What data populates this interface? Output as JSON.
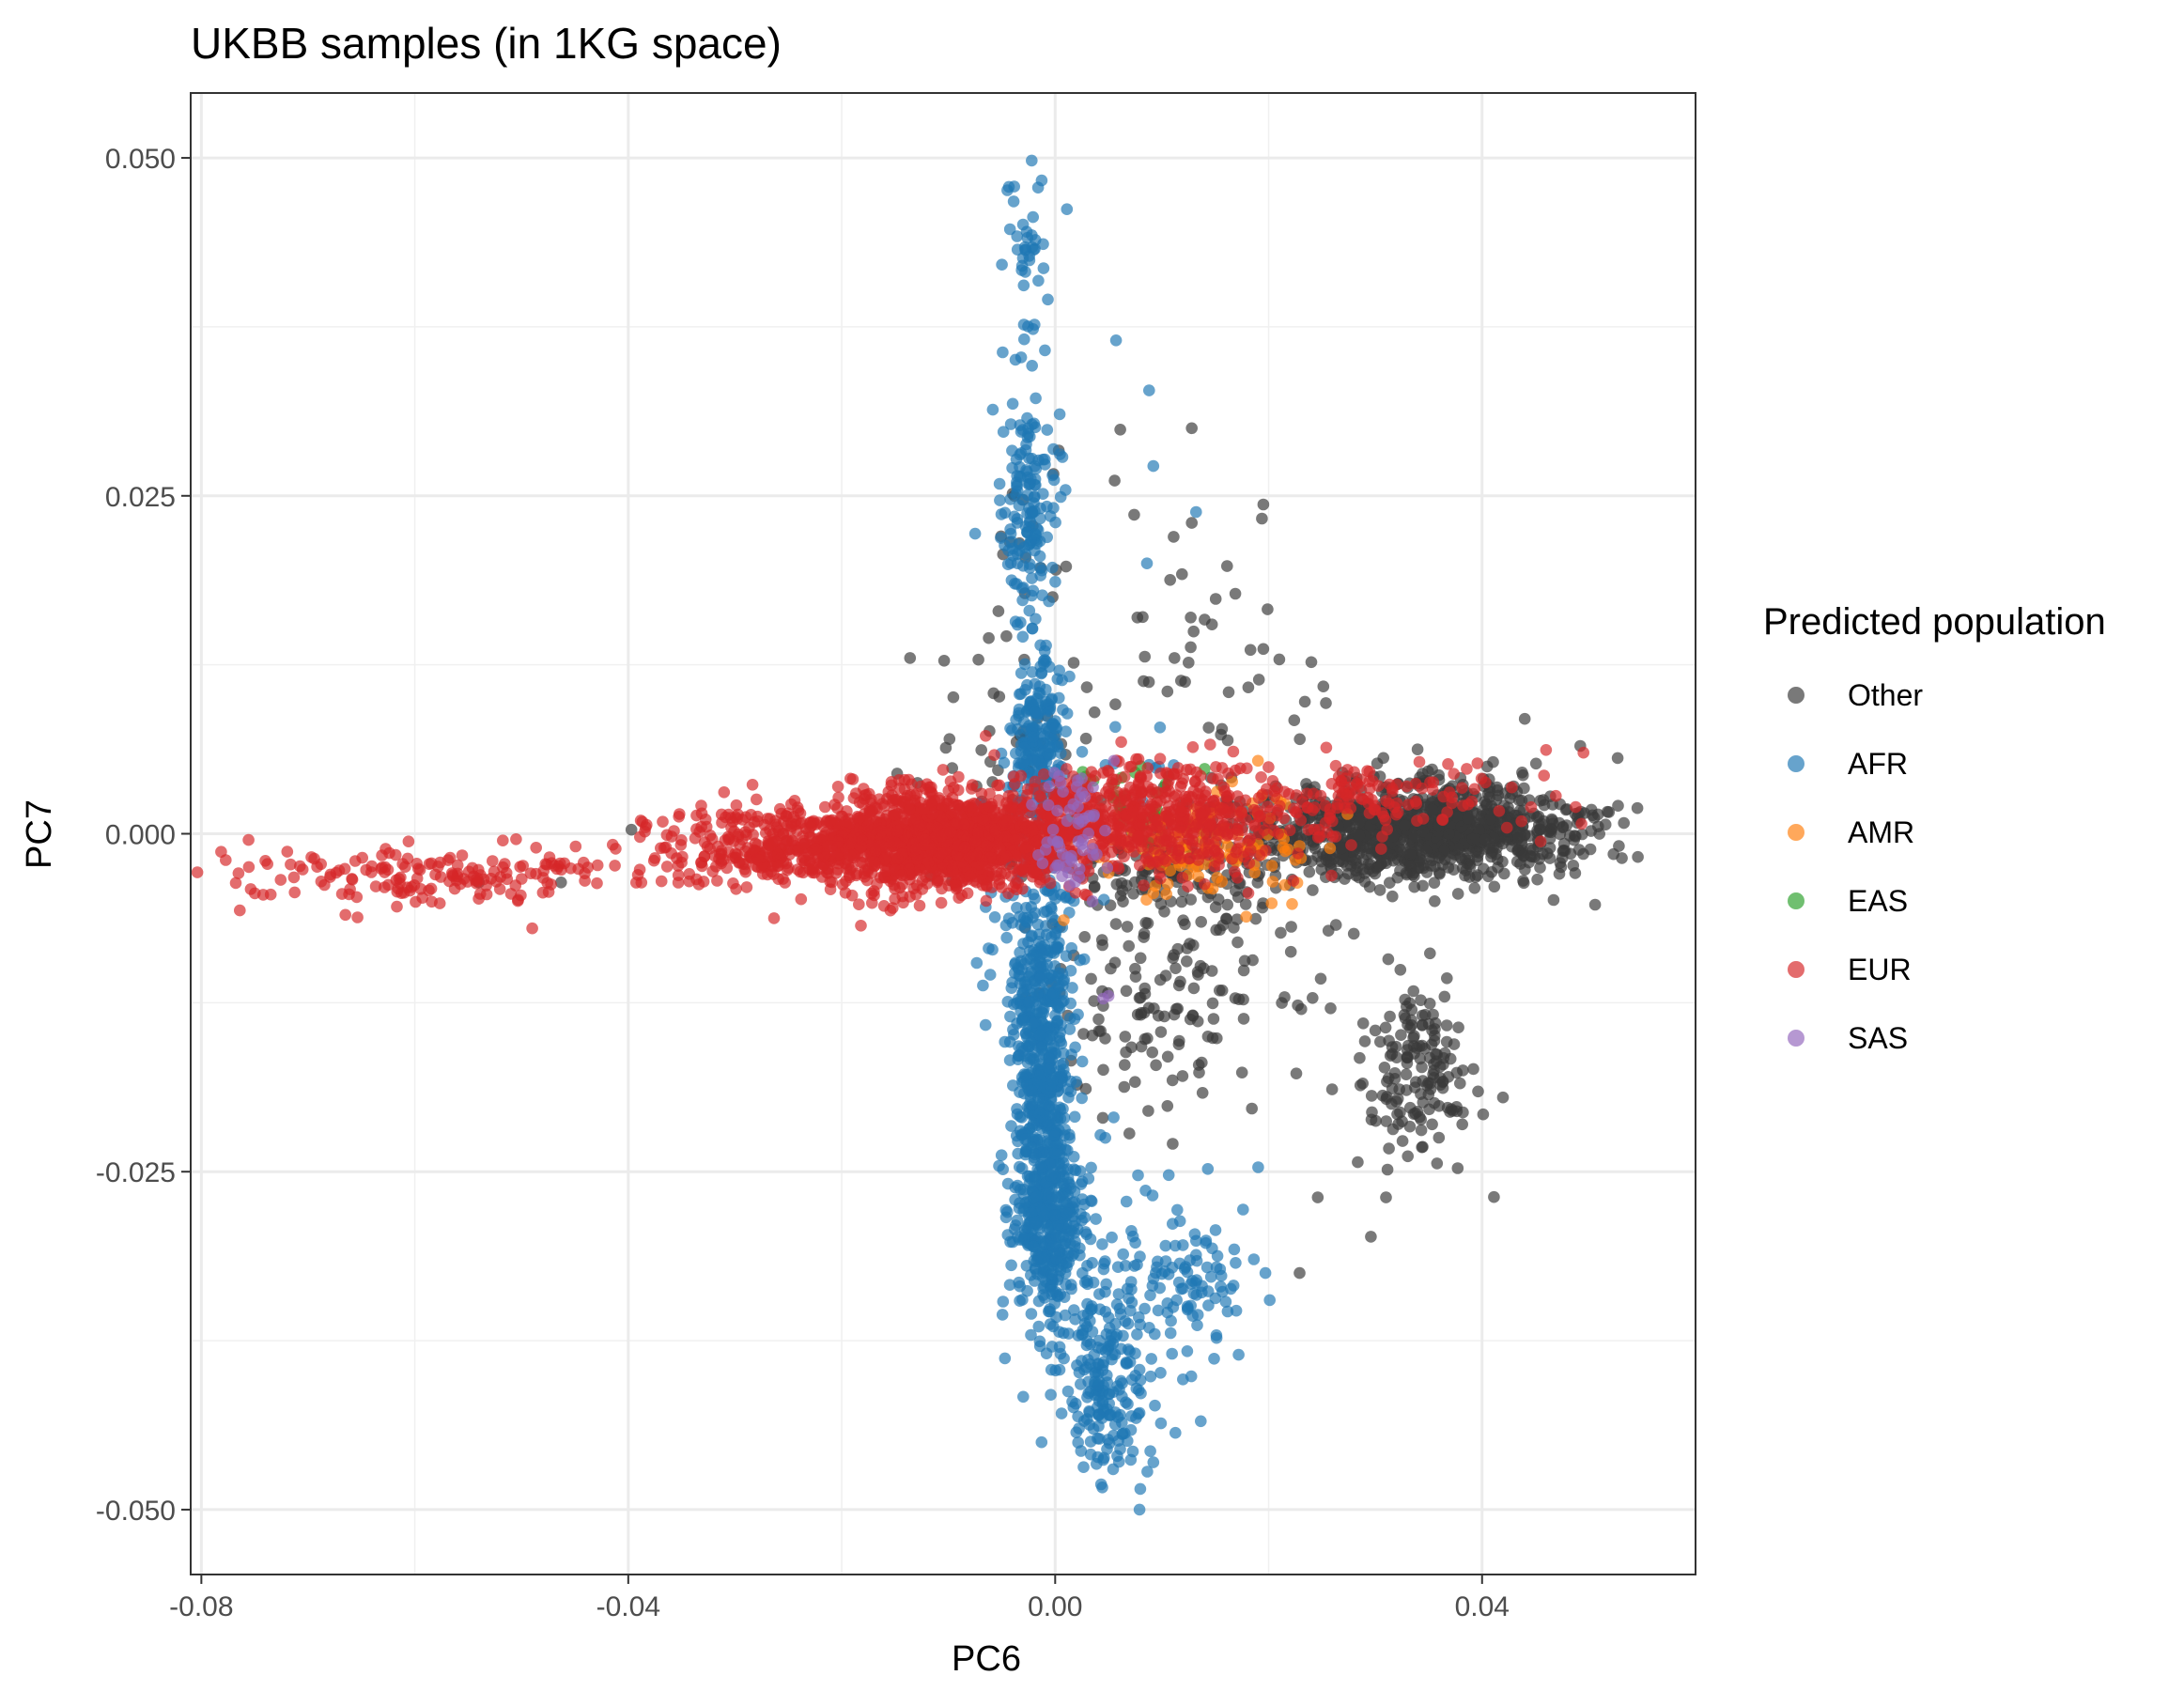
{
  "chart_data": {
    "type": "scatter",
    "title": "UKBB samples (in 1KG space)",
    "xlabel": "PC6",
    "ylabel": "PC7",
    "xlim": [
      -0.081,
      0.06
    ],
    "ylim": [
      -0.0548,
      0.0548
    ],
    "x_ticks": [
      -0.08,
      -0.04,
      0.0,
      0.04
    ],
    "x_tick_labels": [
      "-0.08",
      "-0.04",
      "0.00",
      "0.04"
    ],
    "y_ticks": [
      -0.05,
      -0.025,
      0.0,
      0.025,
      0.05
    ],
    "y_tick_labels": [
      "-0.050",
      "-0.025",
      "0.000",
      "0.025",
      "0.050"
    ],
    "grid": true,
    "legend": {
      "title": "Predicted population",
      "position": "right"
    },
    "series": [
      {
        "name": "Other",
        "color": "#3a3a3a",
        "clusters": [
          {
            "cx": 0.034,
            "cy": 0.0003,
            "sx": 0.0075,
            "sy": 0.0018,
            "n": 1100
          },
          {
            "cx": 0.034,
            "cy": -0.018,
            "sx": 0.0025,
            "sy": 0.0035,
            "n": 160
          },
          {
            "cx": 0.011,
            "cy": -0.011,
            "sx": 0.007,
            "sy": 0.005,
            "n": 170
          },
          {
            "cx": 0.012,
            "cy": -0.002,
            "sx": 0.008,
            "sy": 0.002,
            "n": 160
          },
          {
            "cx": 0.014,
            "cy": 0.01,
            "sx": 0.006,
            "sy": 0.007,
            "n": 45
          },
          {
            "cx": -0.002,
            "cy": 0.02,
            "sx": 0.002,
            "sy": 0.005,
            "n": 20
          },
          {
            "cx": -0.004,
            "cy": 0.006,
            "sx": 0.0035,
            "sy": 0.003,
            "n": 40
          }
        ],
        "points": [
          [
            0.0061,
            0.0299
          ],
          [
            0.0128,
            0.03
          ],
          [
            0.0074,
            0.0236
          ],
          [
            0.0128,
            0.023
          ],
          [
            0.0077,
            0.016
          ],
          [
            0.0127,
            0.016
          ],
          [
            0.0199,
            0.0166
          ],
          [
            0.0084,
            0.0131
          ],
          [
            0.0127,
            0.0138
          ],
          [
            0.0183,
            0.0136
          ],
          [
            0.021,
            0.0129
          ],
          [
            0.024,
            0.0127
          ],
          [
            -0.0136,
            0.013
          ],
          [
            -0.0104,
            0.0128
          ],
          [
            -0.0397,
            0.0003
          ],
          [
            -0.0463,
            -0.0036
          ],
          [
            -0.054,
            -0.0036
          ],
          [
            0.0229,
            -0.0325
          ],
          [
            0.0246,
            -0.0269
          ],
          [
            0.031,
            -0.0269
          ],
          [
            0.044,
            0.0085
          ],
          [
            0.0492,
            0.0065
          ],
          [
            0.0527,
            0.0056
          ],
          [
            0.0531,
            -0.0018
          ],
          [
            0.0467,
            -0.0049
          ]
        ]
      },
      {
        "name": "AFR",
        "color": "#1f77b4",
        "clusters": [
          {
            "cx": -0.0012,
            "cy": -0.018,
            "sx": 0.0013,
            "sy": 0.006,
            "n": 560
          },
          {
            "cx": -0.0005,
            "cy": -0.029,
            "sx": 0.0018,
            "sy": 0.003,
            "n": 320
          },
          {
            "cx": 0.0048,
            "cy": -0.041,
            "sx": 0.002,
            "sy": 0.003,
            "n": 180
          },
          {
            "cx": 0.013,
            "cy": -0.0325,
            "sx": 0.003,
            "sy": 0.002,
            "n": 60
          },
          {
            "cx": 0.007,
            "cy": -0.0335,
            "sx": 0.005,
            "sy": 0.0045,
            "n": 90
          },
          {
            "cx": -0.002,
            "cy": -0.008,
            "sx": 0.0025,
            "sy": 0.004,
            "n": 120
          },
          {
            "cx": -0.0016,
            "cy": 0.007,
            "sx": 0.0012,
            "sy": 0.0035,
            "n": 220
          },
          {
            "cx": -0.0025,
            "cy": 0.024,
            "sx": 0.0012,
            "sy": 0.004,
            "n": 150
          },
          {
            "cx": -0.0025,
            "cy": 0.042,
            "sx": 0.001,
            "sy": 0.003,
            "n": 40
          },
          {
            "cx": 0.008,
            "cy": 0.005,
            "sx": 0.003,
            "sy": 0.0015,
            "n": 10
          }
        ],
        "points": [
          [
            -0.0022,
            0.0498
          ],
          [
            -0.0016,
            0.0478
          ],
          [
            0.0011,
            0.0462
          ],
          [
            0.0057,
            0.0365
          ],
          [
            0.0088,
            0.0328
          ],
          [
            0.0092,
            0.0272
          ],
          [
            0.0132,
            0.0238
          ],
          [
            0.0086,
            0.02
          ],
          [
            -0.0075,
            0.0222
          ],
          [
            0.0047,
            -0.0225
          ],
          [
            0.0155,
            -0.0335
          ],
          [
            0.0197,
            -0.0325
          ],
          [
            0.0201,
            -0.0345
          ],
          [
            0.0079,
            -0.05
          ],
          [
            0.0092,
            -0.0465
          ],
          [
            0.0143,
            -0.0248
          ],
          [
            0.0176,
            -0.0278
          ]
        ]
      },
      {
        "name": "AMR",
        "color": "#ff7f0e",
        "clusters": [
          {
            "cx": 0.014,
            "cy": -0.001,
            "sx": 0.005,
            "sy": 0.0018,
            "n": 130
          }
        ],
        "points": [
          [
            0.0222,
            -0.0052
          ],
          [
            0.0008,
            -0.0064
          ],
          [
            0.019,
            0.0054
          ]
        ]
      },
      {
        "name": "EAS",
        "color": "#2ca02c",
        "clusters": [
          {
            "cx": 0.007,
            "cy": 0.0025,
            "sx": 0.003,
            "sy": 0.0015,
            "n": 25
          }
        ],
        "points": [
          [
            0.008,
            0.005
          ],
          [
            0.014,
            0.0048
          ]
        ]
      },
      {
        "name": "EUR",
        "color": "#d62728",
        "clusters": [
          {
            "cx": -0.01,
            "cy": -0.0005,
            "sx": 0.006,
            "sy": 0.0018,
            "n": 1300
          },
          {
            "cx": -0.024,
            "cy": -0.001,
            "sx": 0.007,
            "sy": 0.0015,
            "n": 450
          },
          {
            "cx": -0.058,
            "cy": -0.003,
            "sx": 0.01,
            "sy": 0.001,
            "n": 170
          },
          {
            "cx": 0.009,
            "cy": 0.001,
            "sx": 0.007,
            "sy": 0.002,
            "n": 550
          },
          {
            "cx": 0.03,
            "cy": 0.0025,
            "sx": 0.008,
            "sy": 0.0014,
            "n": 130
          }
        ],
        "points": [
          [
            -0.074,
            -0.002
          ],
          [
            -0.0735,
            -0.0045
          ],
          [
            -0.0665,
            -0.006
          ],
          [
            -0.049,
            -0.007
          ],
          [
            0.046,
            0.0062
          ],
          [
            0.0495,
            0.006
          ]
        ]
      },
      {
        "name": "SAS",
        "color": "#9467bd",
        "clusters": [
          {
            "cx": 0.0015,
            "cy": 0.001,
            "sx": 0.0015,
            "sy": 0.0025,
            "n": 60
          }
        ],
        "points": [
          [
            0.005,
            -0.012
          ],
          [
            0.0045,
            -0.0122
          ],
          [
            0.0055,
            0.0054
          ],
          [
            0.0035,
            -0.005
          ]
        ]
      }
    ]
  }
}
